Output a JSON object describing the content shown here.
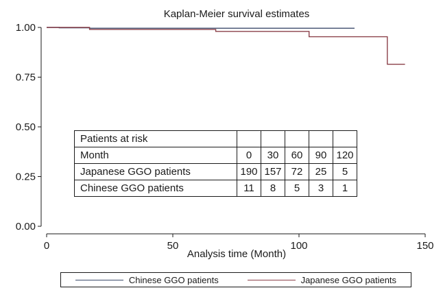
{
  "chart_data": {
    "type": "line",
    "style": "step",
    "title": "Kaplan-Meier survival estimates",
    "xlabel": "Analysis time (Month)",
    "ylabel": "",
    "xlim": [
      0,
      150
    ],
    "ylim": [
      0,
      1
    ],
    "x_ticks": [
      "0",
      "50",
      "100",
      "150"
    ],
    "y_ticks": [
      "0.00",
      "0.25",
      "0.50",
      "0.75",
      "1.00"
    ],
    "grid": false,
    "legend_position": "bottom",
    "series": [
      {
        "name": "Chinese GGO patients",
        "color": "#3b4a6b",
        "points": [
          [
            0,
            1.0
          ],
          [
            5,
            1.0
          ],
          [
            5,
            0.998
          ],
          [
            17,
            0.998
          ],
          [
            17,
            0.996
          ],
          [
            122,
            0.996
          ]
        ]
      },
      {
        "name": "Japanese GGO patients",
        "color": "#8b4049",
        "points": [
          [
            0,
            1.0
          ],
          [
            17,
            1.0
          ],
          [
            17,
            0.99
          ],
          [
            67,
            0.99
          ],
          [
            67,
            0.98
          ],
          [
            104,
            0.98
          ],
          [
            104,
            0.953
          ],
          [
            135,
            0.953
          ],
          [
            135,
            0.815
          ],
          [
            142,
            0.815
          ]
        ]
      }
    ]
  },
  "risk_table": {
    "title": "Patients at risk",
    "header_label": "Month",
    "months": [
      "0",
      "30",
      "60",
      "90",
      "120"
    ],
    "rows": [
      {
        "label": "Japanese GGO patients",
        "values": [
          "190",
          "157",
          "72",
          "25",
          "5"
        ]
      },
      {
        "label": "Chinese GGO patients",
        "values": [
          "11",
          "8",
          "5",
          "3",
          "1"
        ]
      }
    ]
  },
  "legend": {
    "items": [
      {
        "label": "Chinese GGO patients",
        "color": "#3b4a6b"
      },
      {
        "label": "Japanese GGO patients",
        "color": "#8b4049"
      }
    ]
  }
}
